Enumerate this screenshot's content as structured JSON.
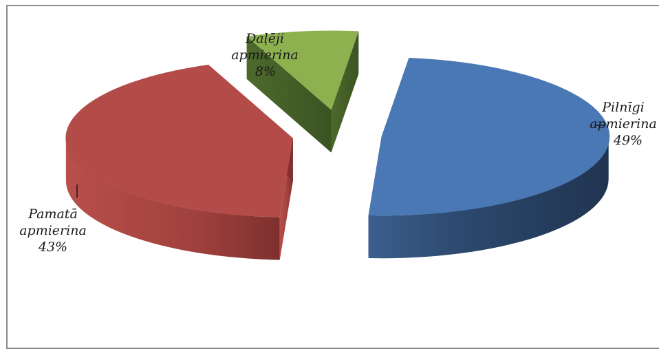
{
  "chart_data": {
    "type": "pie",
    "title": "",
    "slices": [
      {
        "name": "Pilnīgi apmierina",
        "label_lines": [
          "Pilnīgi",
          "apmierina"
        ],
        "value": 49,
        "value_label": "49%",
        "color": "#4a78b4"
      },
      {
        "name": "Pamatā apmierina",
        "label_lines": [
          "Pamatā",
          "apmierina"
        ],
        "value": 43,
        "value_label": "43%",
        "color": "#b34c48"
      },
      {
        "name": "Daļēji apmierina",
        "label_lines": [
          "Daļēji",
          "apmierina"
        ],
        "value": 8,
        "value_label": "8%",
        "color": "#8eb150"
      }
    ],
    "exploded": true,
    "three_d": true,
    "legend": "none"
  }
}
